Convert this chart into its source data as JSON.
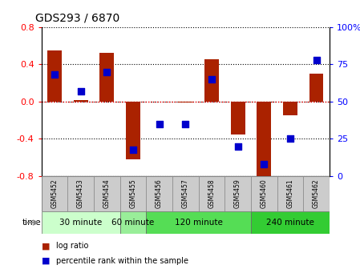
{
  "title": "GDS293 / 6870",
  "samples": [
    "GSM5452",
    "GSM5453",
    "GSM5454",
    "GSM5455",
    "GSM5456",
    "GSM5457",
    "GSM5458",
    "GSM5459",
    "GSM5460",
    "GSM5461",
    "GSM5462"
  ],
  "log_ratio": [
    0.55,
    0.02,
    0.52,
    -0.62,
    0.0,
    -0.01,
    0.45,
    -0.35,
    -0.8,
    -0.15,
    0.3
  ],
  "percentile": [
    68,
    57,
    70,
    18,
    35,
    35,
    65,
    20,
    8,
    25,
    78
  ],
  "bar_color": "#aa2200",
  "dot_color": "#0000cc",
  "ylim_left": [
    -0.8,
    0.8
  ],
  "ylim_right": [
    0,
    100
  ],
  "yticks_left": [
    -0.8,
    -0.4,
    0.0,
    0.4,
    0.8
  ],
  "yticks_right": [
    0,
    25,
    50,
    75,
    100
  ],
  "groups": [
    {
      "label": "30 minute",
      "start": 0,
      "end": 2
    },
    {
      "label": "60 minute",
      "start": 3,
      "end": 3
    },
    {
      "label": "120 minute",
      "start": 4,
      "end": 7
    },
    {
      "label": "240 minute",
      "start": 8,
      "end": 10
    }
  ],
  "group_colors": [
    "#ccffcc",
    "#99ee99",
    "#55dd55",
    "#33cc33"
  ],
  "legend_labels": [
    "log ratio",
    "percentile rank within the sample"
  ],
  "bar_width": 0.55,
  "dot_size": 30,
  "sample_box_color": "#cccccc",
  "axisbg": "#ffffff"
}
